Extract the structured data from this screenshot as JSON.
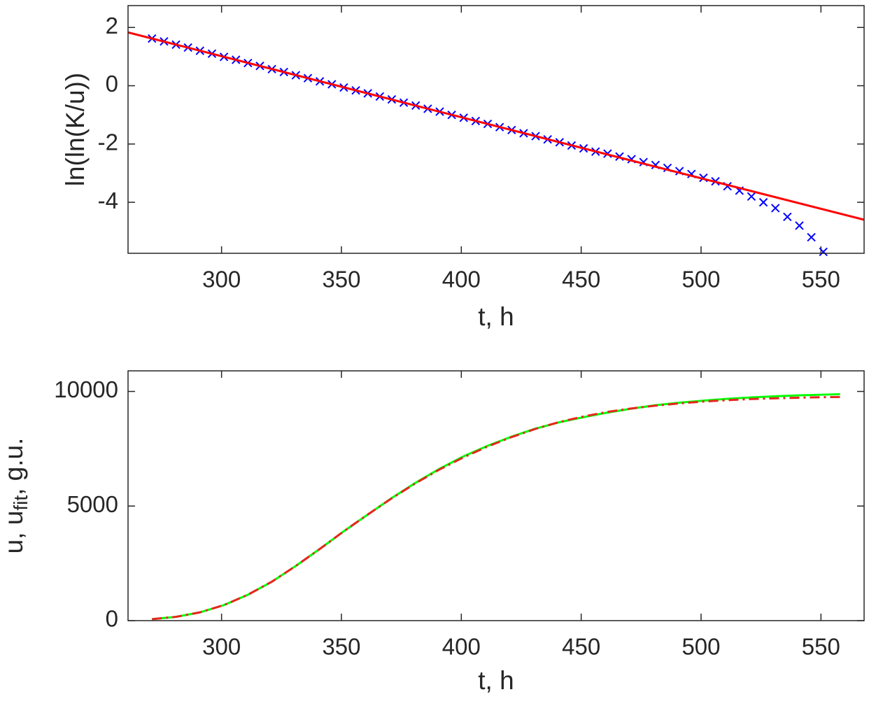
{
  "chart_data": [
    {
      "type": "scatter",
      "xlabel": "t, h",
      "ylabel": "ln(ln(K/u))",
      "xlim": [
        261,
        568
      ],
      "ylim": [
        -5.75,
        2.75
      ],
      "xticks": [
        300,
        350,
        400,
        450,
        500,
        550
      ],
      "yticks": [
        -4,
        -2,
        0,
        2
      ],
      "series": [
        {
          "color": "#0000ff",
          "marker": "x",
          "x": [
            271,
            276,
            281,
            286,
            291,
            296,
            301,
            306,
            311,
            316,
            321,
            326,
            331,
            336,
            341,
            346,
            351,
            356,
            361,
            366,
            371,
            376,
            381,
            386,
            391,
            396,
            401,
            406,
            411,
            416,
            421,
            426,
            431,
            436,
            441,
            446,
            451,
            456,
            461,
            466,
            471,
            476,
            481,
            486,
            491,
            496,
            501,
            506,
            511,
            516,
            521,
            526,
            531,
            536,
            541,
            546,
            551
          ],
          "values": [
            1.62,
            1.52,
            1.41,
            1.31,
            1.2,
            1.1,
            0.99,
            0.89,
            0.78,
            0.68,
            0.57,
            0.47,
            0.36,
            0.26,
            0.15,
            0.05,
            -0.06,
            -0.16,
            -0.26,
            -0.37,
            -0.47,
            -0.58,
            -0.68,
            -0.79,
            -0.89,
            -1.0,
            -1.1,
            -1.21,
            -1.31,
            -1.42,
            -1.52,
            -1.63,
            -1.73,
            -1.84,
            -1.94,
            -2.05,
            -2.15,
            -2.26,
            -2.33,
            -2.43,
            -2.52,
            -2.62,
            -2.72,
            -2.82,
            -2.93,
            -3.03,
            -3.16,
            -3.28,
            -3.45,
            -3.6,
            -3.8,
            -4.0,
            -4.2,
            -4.5,
            -4.8,
            -5.2,
            -5.7
          ]
        },
        {
          "color": "#ff0000",
          "marker": "none",
          "x": [
            261,
            568
          ],
          "values": [
            1.83,
            -4.6
          ]
        }
      ]
    },
    {
      "type": "line",
      "xlabel": "t, h",
      "ylabel": {
        "main": "u, u",
        "sub": "fit",
        "rest": ", g.u."
      },
      "xlim": [
        261,
        568
      ],
      "ylim": [
        0,
        10900
      ],
      "xticks": [
        300,
        350,
        400,
        450,
        500,
        550
      ],
      "yticks": [
        0,
        5000,
        10000
      ],
      "series": [
        {
          "color": "#00ff00",
          "dash": "solid",
          "x": [
            271,
            281,
            291,
            301,
            311,
            321,
            331,
            341,
            351,
            361,
            371,
            381,
            391,
            401,
            411,
            421,
            431,
            441,
            451,
            461,
            471,
            481,
            491,
            501,
            511,
            521,
            531,
            541,
            551,
            558
          ],
          "values": [
            64,
            166,
            362,
            679,
            1130,
            1700,
            2390,
            3130,
            3900,
            4630,
            5350,
            6020,
            6630,
            7170,
            7630,
            8030,
            8380,
            8660,
            8880,
            9080,
            9250,
            9400,
            9510,
            9600,
            9680,
            9740,
            9790,
            9830,
            9860,
            9880
          ]
        },
        {
          "color": "#e8251f",
          "dash": "dash-dot",
          "x": [
            271,
            281,
            291,
            301,
            311,
            321,
            331,
            341,
            351,
            361,
            371,
            381,
            391,
            401,
            411,
            421,
            431,
            441,
            451,
            461,
            471,
            481,
            491,
            501,
            511,
            521,
            531,
            541,
            551,
            558
          ],
          "values": [
            64,
            166,
            362,
            679,
            1130,
            1700,
            2390,
            3130,
            3900,
            4630,
            5340,
            6000,
            6600,
            7130,
            7600,
            8010,
            8370,
            8670,
            8910,
            9110,
            9260,
            9380,
            9480,
            9560,
            9620,
            9670,
            9700,
            9730,
            9750,
            9760
          ]
        }
      ]
    }
  ]
}
